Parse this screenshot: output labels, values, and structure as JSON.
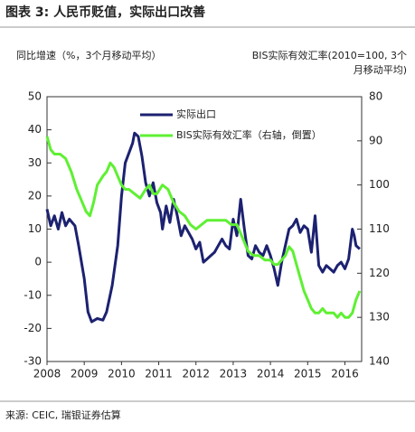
{
  "chart_data": {
    "type": "line",
    "title": "图表 3: 人民币贬值，实际出口改善",
    "y_label": "同比增速（%，3个月移动平均）",
    "y2_label_lines": [
      "BIS实际有效汇率(2010=100, 3个",
      "月移动平均)"
    ],
    "source": "来源: CEIC, 瑞银证券估算",
    "legend": "upper center",
    "xlim": [
      2008,
      2016.45
    ],
    "xticks": [
      2008,
      2009,
      2010,
      2011,
      2012,
      2013,
      2014,
      2015,
      2016
    ],
    "ylim": [
      -30,
      50
    ],
    "yticks": [
      -30,
      -20,
      -10,
      0,
      10,
      20,
      30,
      40,
      50
    ],
    "y2lim": [
      140,
      80
    ],
    "y2ticks": [
      80,
      90,
      100,
      110,
      120,
      130,
      140
    ],
    "series": [
      {
        "name": "实际出口",
        "color": "#1c2170",
        "x": [
          2008.0,
          2008.1,
          2008.2,
          2008.3,
          2008.4,
          2008.5,
          2008.6,
          2008.75,
          2008.85,
          2009.0,
          2009.1,
          2009.2,
          2009.35,
          2009.5,
          2009.6,
          2009.75,
          2009.9,
          2010.0,
          2010.1,
          2010.2,
          2010.3,
          2010.35,
          2010.45,
          2010.55,
          2010.65,
          2010.75,
          2010.85,
          2010.95,
          2011.05,
          2011.1,
          2011.2,
          2011.3,
          2011.4,
          2011.5,
          2011.6,
          2011.7,
          2011.8,
          2011.9,
          2012.0,
          2012.1,
          2012.2,
          2012.3,
          2012.4,
          2012.5,
          2012.6,
          2012.7,
          2012.8,
          2012.9,
          2013.0,
          2013.1,
          2013.2,
          2013.3,
          2013.4,
          2013.5,
          2013.6,
          2013.7,
          2013.8,
          2013.9,
          2014.0,
          2014.1,
          2014.2,
          2014.3,
          2014.4,
          2014.5,
          2014.6,
          2014.7,
          2014.8,
          2014.9,
          2015.0,
          2015.1,
          2015.2,
          2015.3,
          2015.4,
          2015.5,
          2015.6,
          2015.7,
          2015.8,
          2015.9,
          2016.0,
          2016.1,
          2016.2,
          2016.25,
          2016.3,
          2016.4
        ],
        "values": [
          16,
          11,
          14,
          10,
          15,
          11,
          13,
          11,
          5,
          -5,
          -15,
          -18,
          -17,
          -17.5,
          -15,
          -7,
          5,
          20,
          30,
          33,
          36,
          39,
          38,
          32,
          24,
          20,
          24,
          18,
          15,
          10,
          17,
          12,
          19,
          14,
          8,
          11,
          9,
          7,
          4,
          6,
          0,
          1,
          2,
          3,
          5,
          7,
          5,
          4,
          13,
          8,
          19,
          10,
          2,
          1,
          5,
          3,
          2,
          5,
          2,
          -2,
          -7,
          0,
          5,
          10,
          11,
          13,
          9,
          11,
          10,
          3,
          14,
          -1,
          -3,
          -1,
          -2,
          -3,
          -1,
          0,
          -2,
          1,
          10,
          8,
          5,
          4
        ]
      },
      {
        "name": "BIS实际有效汇率（右轴，倒置）",
        "color": "#5ef032",
        "axis": "y2",
        "x": [
          2008.0,
          2008.1,
          2008.2,
          2008.35,
          2008.5,
          2008.65,
          2008.8,
          2008.95,
          2009.05,
          2009.15,
          2009.25,
          2009.35,
          2009.5,
          2009.6,
          2009.7,
          2009.8,
          2009.9,
          2010.0,
          2010.1,
          2010.2,
          2010.35,
          2010.5,
          2010.65,
          2010.75,
          2010.85,
          2010.95,
          2011.1,
          2011.25,
          2011.4,
          2011.55,
          2011.7,
          2011.85,
          2012.0,
          2012.15,
          2012.3,
          2012.5,
          2012.65,
          2012.8,
          2012.95,
          2013.1,
          2013.2,
          2013.3,
          2013.4,
          2013.55,
          2013.7,
          2013.85,
          2014.0,
          2014.1,
          2014.2,
          2014.3,
          2014.4,
          2014.5,
          2014.6,
          2014.7,
          2014.8,
          2014.9,
          2015.0,
          2015.1,
          2015.2,
          2015.3,
          2015.4,
          2015.5,
          2015.6,
          2015.7,
          2015.8,
          2015.9,
          2016.0,
          2016.1,
          2016.2,
          2016.3,
          2016.4
        ],
        "values": [
          89,
          92,
          93,
          93,
          94,
          97,
          101,
          104,
          106,
          107,
          104,
          100,
          98,
          97,
          95,
          96,
          98,
          100,
          101,
          101,
          102,
          103,
          101,
          100,
          102,
          102,
          100,
          101,
          104,
          106,
          107,
          109,
          110,
          109,
          108,
          108,
          108,
          108,
          109,
          109,
          111,
          113,
          115,
          116,
          116,
          117,
          117,
          118,
          118,
          117,
          116,
          114,
          115,
          118,
          121,
          124,
          126,
          128,
          129,
          129,
          128,
          129,
          129,
          129,
          130,
          129,
          130,
          130,
          129,
          126,
          124
        ]
      }
    ]
  }
}
